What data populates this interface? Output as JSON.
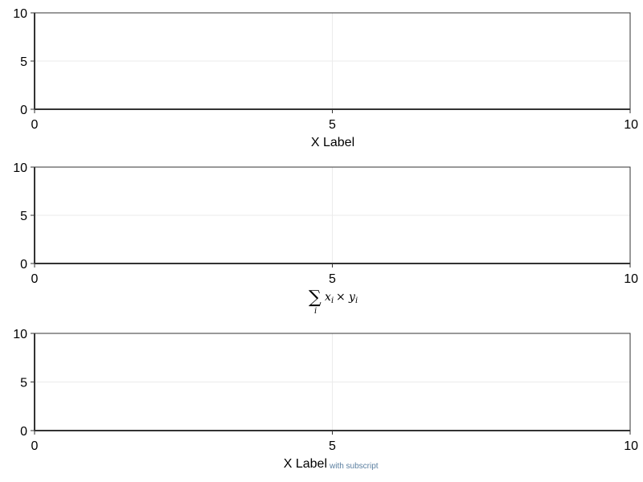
{
  "chart_data": [
    {
      "type": "line",
      "series": [],
      "xlim": [
        0,
        10
      ],
      "ylim": [
        0,
        10
      ],
      "xticks": [
        "0",
        "5",
        "10"
      ],
      "yticks": [
        "0",
        "5",
        "10"
      ],
      "xlabel": "X Label",
      "grid": true
    },
    {
      "type": "line",
      "series": [],
      "xlim": [
        0,
        10
      ],
      "ylim": [
        0,
        10
      ],
      "xticks": [
        "0",
        "5",
        "10"
      ],
      "yticks": [
        "0",
        "5",
        "10"
      ],
      "xlabel": "",
      "xlabel_math": {
        "operator": "∑",
        "index": "i",
        "x": "x",
        "times": "×",
        "y": "y",
        "subscript": "i"
      },
      "grid": true
    },
    {
      "type": "line",
      "series": [],
      "xlim": [
        0,
        10
      ],
      "ylim": [
        0,
        10
      ],
      "xticks": [
        "0",
        "5",
        "10"
      ],
      "yticks": [
        "0",
        "5",
        "10"
      ],
      "xlabel": "X Label",
      "xlabel_subscript": "with subscript",
      "grid": true
    }
  ],
  "colors": {
    "axis": "#333333",
    "grid": "#ebebeb",
    "subscript": "#5b7fa0"
  }
}
